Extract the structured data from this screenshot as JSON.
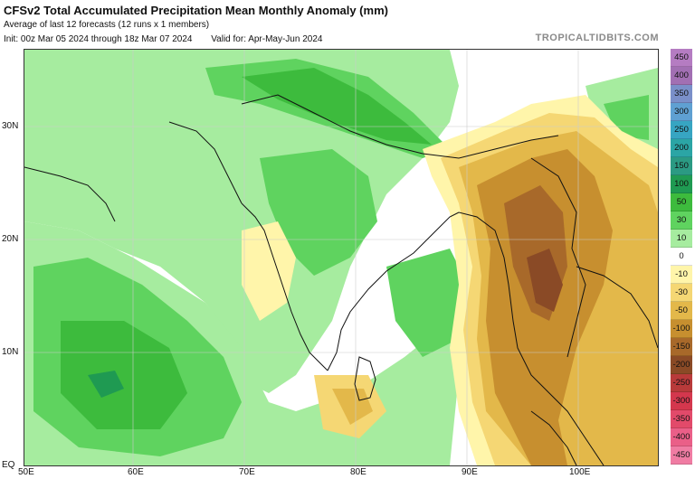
{
  "header": {
    "title": "CFSv2 Total Accumulated Precipitation Mean Monthly Anomaly (mm)",
    "subtitle": "Average of last 12 forecasts (12 runs x 1 members)",
    "init": "Init: 00z Mar 05 2024 through 18z Mar 07 2024",
    "valid": "Valid for: Apr-May-Jun 2024",
    "credit": "TROPICALTIDBITS.COM"
  },
  "axes": {
    "lat_labels": [
      "30N",
      "20N",
      "10N",
      "EQ"
    ],
    "lon_labels": [
      "50E",
      "60E",
      "70E",
      "80E",
      "90E",
      "100E"
    ]
  },
  "colorbar": {
    "levels": [
      {
        "label": "450",
        "color": "#b57cc2"
      },
      {
        "label": "400",
        "color": "#a26fb3"
      },
      {
        "label": "350",
        "color": "#7a8fc9"
      },
      {
        "label": "300",
        "color": "#5fa0d2"
      },
      {
        "label": "250",
        "color": "#37a5c2"
      },
      {
        "label": "200",
        "color": "#2ba5a5"
      },
      {
        "label": "150",
        "color": "#2b9a83"
      },
      {
        "label": "100",
        "color": "#1f9a52"
      },
      {
        "label": "50",
        "color": "#3dbb3d"
      },
      {
        "label": "30",
        "color": "#5fd35f"
      },
      {
        "label": "10",
        "color": "#a6ec9f"
      },
      {
        "label": "0",
        "color": "#ffffff"
      },
      {
        "label": "-10",
        "color": "#fff5aa"
      },
      {
        "label": "-30",
        "color": "#f5d774"
      },
      {
        "label": "-50",
        "color": "#e3b84a"
      },
      {
        "label": "-100",
        "color": "#c78f2f"
      },
      {
        "label": "-150",
        "color": "#a8692a"
      },
      {
        "label": "-200",
        "color": "#8a4a26"
      },
      {
        "label": "-250",
        "color": "#b83a3a"
      },
      {
        "label": "-300",
        "color": "#d4374d"
      },
      {
        "label": "-350",
        "color": "#e24a6a"
      },
      {
        "label": "-400",
        "color": "#ea5f88"
      },
      {
        "label": "-450",
        "color": "#f07ca3"
      }
    ]
  },
  "map_colors": {
    "ocean": "#ffffff",
    "green_light": "#a6ec9f",
    "green_mid": "#5fd35f",
    "green_dark": "#3dbb3d",
    "green_deep": "#1f9a52",
    "yellow_light": "#fff5aa",
    "yellow": "#f5d774",
    "orange": "#e3b84a",
    "brown": "#c78f2f",
    "brown_dark": "#a8692a",
    "red": "#b83a3a",
    "border": "#111111"
  }
}
